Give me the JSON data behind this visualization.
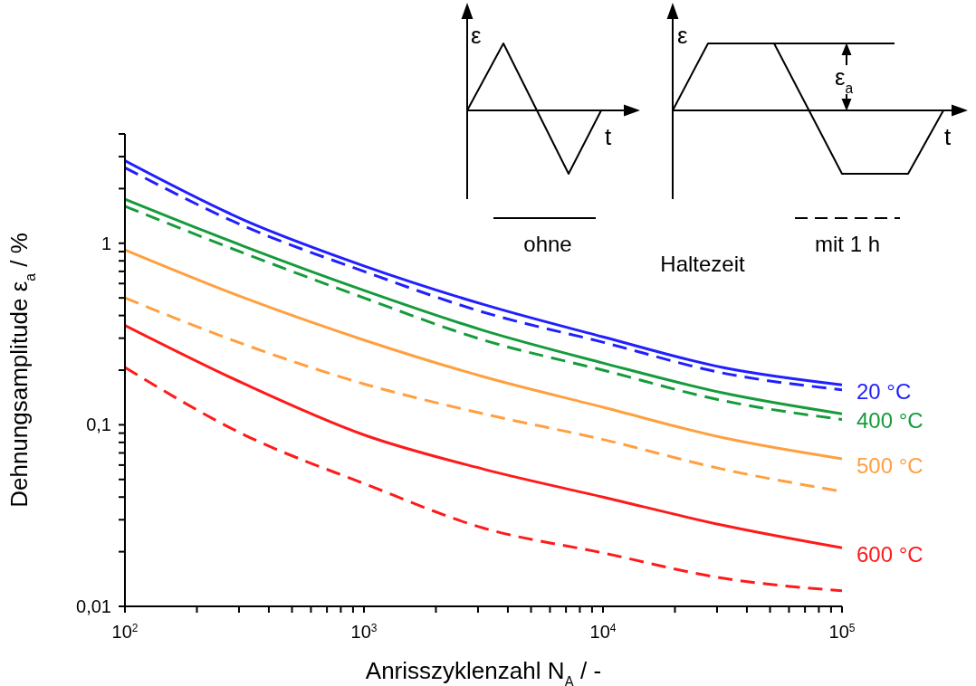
{
  "chart_data": {
    "type": "line",
    "xlabel": "Anrisszyklenzahl N$_{A}$  / -",
    "ylabel": "Dehnungsamplitude ε$_{a}$  / %",
    "log": "xy",
    "x": [
      100,
      316,
      1000,
      3162,
      10000,
      31623,
      100000
    ],
    "xlim": [
      100,
      100000
    ],
    "xticks": [
      {
        "value": 100,
        "label": "10$^{2}$"
      },
      {
        "value": 200,
        "label": null
      },
      {
        "value": 300,
        "label": null
      },
      {
        "value": 400,
        "label": null
      },
      {
        "value": 500,
        "label": null
      },
      {
        "value": 600,
        "label": null
      },
      {
        "value": 700,
        "label": null
      },
      {
        "value": 800,
        "label": null
      },
      {
        "value": 900,
        "label": null
      },
      {
        "value": 1000,
        "label": "10$^{3}$"
      },
      {
        "value": 2000,
        "label": null
      },
      {
        "value": 3000,
        "label": null
      },
      {
        "value": 4000,
        "label": null
      },
      {
        "value": 5000,
        "label": null
      },
      {
        "value": 6000,
        "label": null
      },
      {
        "value": 7000,
        "label": null
      },
      {
        "value": 8000,
        "label": null
      },
      {
        "value": 9000,
        "label": null
      },
      {
        "value": 10000,
        "label": "10$^{4}$"
      },
      {
        "value": 20000,
        "label": null
      },
      {
        "value": 30000,
        "label": null
      },
      {
        "value": 40000,
        "label": null
      },
      {
        "value": 50000,
        "label": null
      },
      {
        "value": 60000,
        "label": null
      },
      {
        "value": 70000,
        "label": null
      },
      {
        "value": 80000,
        "label": null
      },
      {
        "value": 90000,
        "label": null
      },
      {
        "value": 100000,
        "label": "10$^{5}$"
      }
    ],
    "ylim": [
      0.01,
      4
    ],
    "yticks": [
      {
        "value": 0.01,
        "label": "0,01"
      },
      {
        "value": 0.02,
        "label": null
      },
      {
        "value": 0.03,
        "label": null
      },
      {
        "value": 0.04,
        "label": null
      },
      {
        "value": 0.05,
        "label": null
      },
      {
        "value": 0.06,
        "label": null
      },
      {
        "value": 0.07,
        "label": null
      },
      {
        "value": 0.08,
        "label": null
      },
      {
        "value": 0.09,
        "label": null
      },
      {
        "value": 0.1,
        "label": "0,1"
      },
      {
        "value": 0.2,
        "label": null
      },
      {
        "value": 0.3,
        "label": null
      },
      {
        "value": 0.4,
        "label": null
      },
      {
        "value": 0.5,
        "label": null
      },
      {
        "value": 0.6,
        "label": null
      },
      {
        "value": 0.7,
        "label": null
      },
      {
        "value": 0.8,
        "label": null
      },
      {
        "value": 0.9,
        "label": null
      },
      1,
      {
        "value": 2,
        "label": null
      },
      {
        "value": 3,
        "label": null
      },
      {
        "value": 4,
        "label": null
      }
    ],
    "series": [
      {
        "name": "20 °C",
        "color": "#1f1fff",
        "line_style": "solid",
        "values": [
          2.85,
          1.34,
          0.75,
          0.46,
          0.305,
          0.207,
          0.166
        ]
      },
      {
        "color": "#1f1fff",
        "line_style": "dashed",
        "values": [
          2.61,
          1.24,
          0.7,
          0.417,
          0.285,
          0.193,
          0.156
        ]
      },
      {
        "name": "400 °C",
        "color": "#169b3c",
        "line_style": "solid",
        "values": [
          1.75,
          0.96,
          0.55,
          0.331,
          0.219,
          0.15,
          0.115
        ]
      },
      {
        "color": "#169b3c",
        "line_style": "dashed",
        "values": [
          1.6,
          0.88,
          0.5,
          0.293,
          0.2,
          0.136,
          0.107
        ]
      },
      {
        "name": "500 °C",
        "color": "#ffa040",
        "line_style": "solid",
        "values": [
          0.92,
          0.5,
          0.293,
          0.184,
          0.125,
          0.085,
          0.065
        ]
      },
      {
        "color": "#ffa040",
        "line_style": "dashed",
        "values": [
          0.5,
          0.277,
          0.168,
          0.115,
          0.083,
          0.057,
          0.043
        ]
      },
      {
        "name": "600 °C",
        "color": "#ff1a1a",
        "line_style": "solid",
        "values": [
          0.353,
          0.168,
          0.088,
          0.057,
          0.04,
          0.028,
          0.021
        ]
      },
      {
        "color": "#ff1a1a",
        "line_style": "dashed",
        "values": [
          0.207,
          0.088,
          0.0475,
          0.027,
          0.0197,
          0.0143,
          0.0122
        ]
      }
    ],
    "annotations": [
      "ε",
      "t",
      "ε",
      "ε$_{a}$",
      "t",
      "ohne",
      "mit 1 h",
      "Haltezeit"
    ]
  }
}
